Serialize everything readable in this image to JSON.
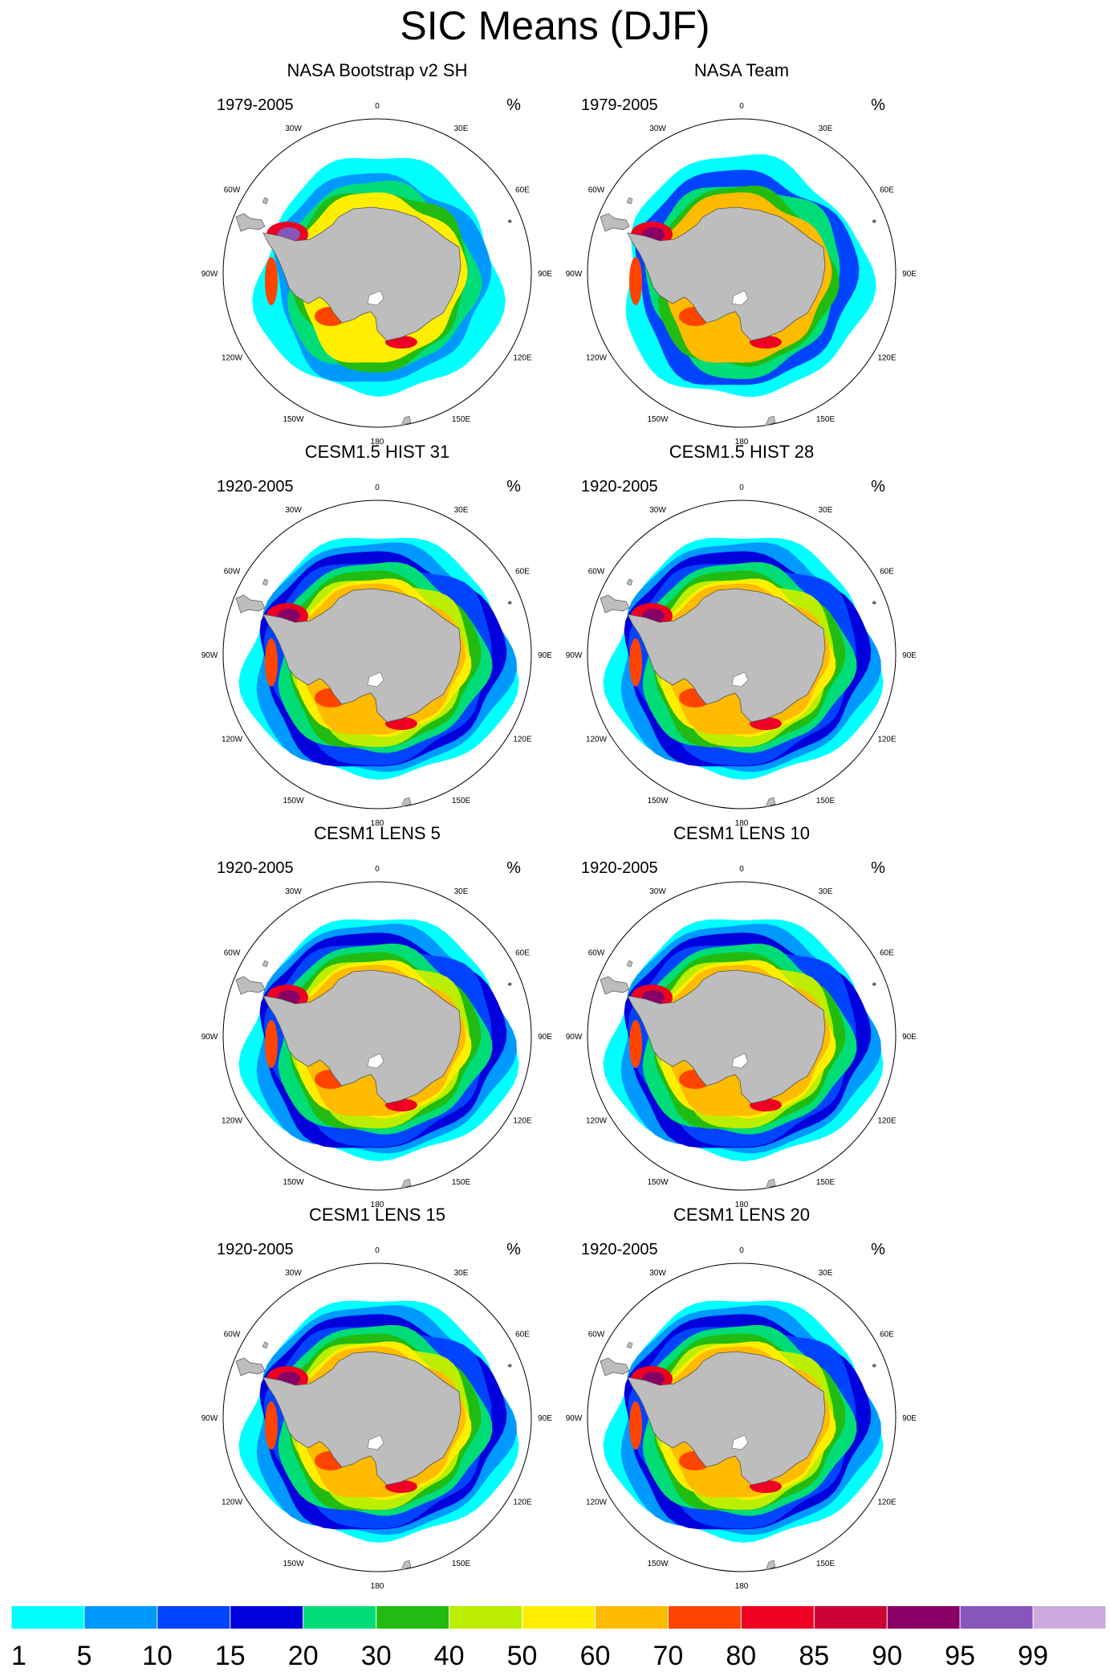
{
  "chart_data": {
    "type": "heatmap",
    "title": "SIC Means (DJF)",
    "projection": "south polar stereographic",
    "units": "%",
    "lon_labels": [
      "0",
      "30E",
      "60E",
      "90E",
      "120E",
      "150E",
      "180",
      "150W",
      "120W",
      "90W",
      "60W",
      "30W"
    ],
    "panels": [
      {
        "title": "NASA Bootstrap v2 SH",
        "period": "1979-2005",
        "units": "%",
        "style": "obs1"
      },
      {
        "title": "NASA Team",
        "period": "1979-2005",
        "units": "%",
        "style": "obs2"
      },
      {
        "title": "CESM1.5 HIST 31",
        "period": "1920-2005",
        "units": "%",
        "style": "model"
      },
      {
        "title": "CESM1.5 HIST 28",
        "period": "1920-2005",
        "units": "%",
        "style": "model"
      },
      {
        "title": "CESM1 LENS 5",
        "period": "1920-2005",
        "units": "%",
        "style": "model"
      },
      {
        "title": "CESM1 LENS 10",
        "period": "1920-2005",
        "units": "%",
        "style": "model"
      },
      {
        "title": "CESM1 LENS 15",
        "period": "1920-2005",
        "units": "%",
        "style": "model"
      },
      {
        "title": "CESM1 LENS 20",
        "period": "1920-2005",
        "units": "%",
        "style": "model"
      }
    ],
    "colorbar": {
      "levels": [
        1,
        5,
        10,
        15,
        20,
        30,
        40,
        50,
        60,
        70,
        80,
        85,
        90,
        95,
        99
      ],
      "colors": [
        "#00ffff",
        "#0099ff",
        "#0044ff",
        "#0000dd",
        "#00dd77",
        "#22bb11",
        "#bbee00",
        "#ffee00",
        "#ffbb00",
        "#ff4400",
        "#ee0022",
        "#cc0033",
        "#880066",
        "#8855bb",
        "#ccaadd"
      ]
    }
  }
}
